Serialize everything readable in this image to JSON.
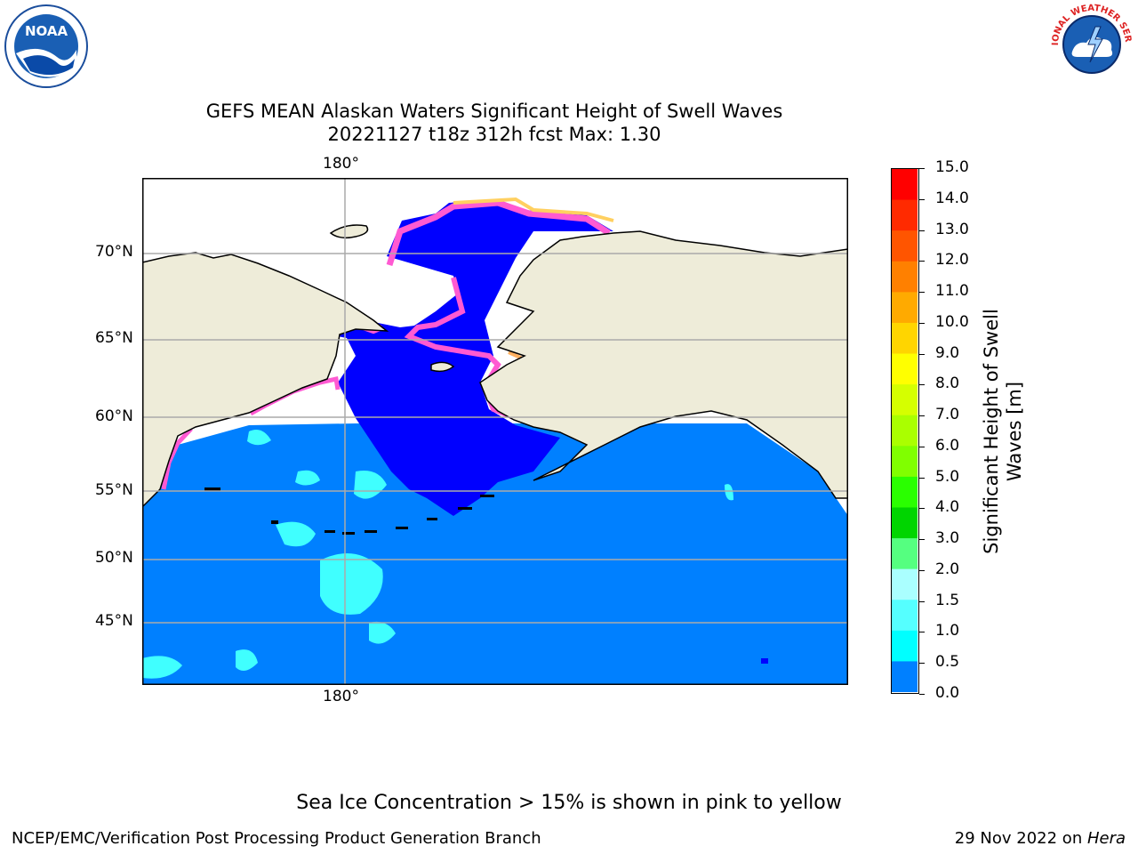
{
  "header": {
    "title_line1": "GEFS MEAN Alaskan Waters Significant Height of Swell Waves",
    "title_line2": "20221127 t18z 312h fcst   Max: 1.30"
  },
  "logos": {
    "noaa_text": "NOAA",
    "nws_text": "NATIONAL WEATHER SERVICE"
  },
  "map": {
    "lon_label_top": "180°",
    "lon_label_bottom": "180°",
    "lat_labels": [
      "70°N",
      "65°N",
      "60°N",
      "55°N",
      "50°N",
      "45°N"
    ],
    "colors": {
      "land": "#eeecd9",
      "ocean_0_5": "#0000ff",
      "ocean_0_5_1": "#0080ff",
      "ocean_1_1_5": "#00ffff",
      "ocean_1_5_2": "#40ffff",
      "ice_pink": "#ff5ad2",
      "ice_orange": "#ffb060",
      "ice_yellow": "#ffe060"
    }
  },
  "colorbar": {
    "title_line1": "Significant Height of Swell",
    "title_line2": "Waves [m]",
    "tick_labels": [
      "15.0",
      "14.0",
      "13.0",
      "12.0",
      "11.0",
      "10.0",
      "9.0",
      "8.0",
      "7.0",
      "6.0",
      "5.0",
      "4.0",
      "3.0",
      "2.0",
      "1.5",
      "1.0",
      "0.5",
      "0.0"
    ],
    "segment_colors": [
      "#ff0000",
      "#ff2a00",
      "#ff5500",
      "#ff8000",
      "#ffaa00",
      "#ffd500",
      "#ffff00",
      "#d5ff00",
      "#aaff00",
      "#80ff00",
      "#2aff00",
      "#00d500",
      "#55ff80",
      "#aaffff",
      "#55ffff",
      "#00ffff",
      "#0080ff",
      "#0000ff"
    ]
  },
  "footer": {
    "note": "Sea Ice Concentration > 15% is shown in pink to yellow",
    "left": "NCEP/EMC/Verification Post Processing Product Generation Branch",
    "right_date": "29 Nov 2022 on ",
    "right_host": "Hera"
  }
}
